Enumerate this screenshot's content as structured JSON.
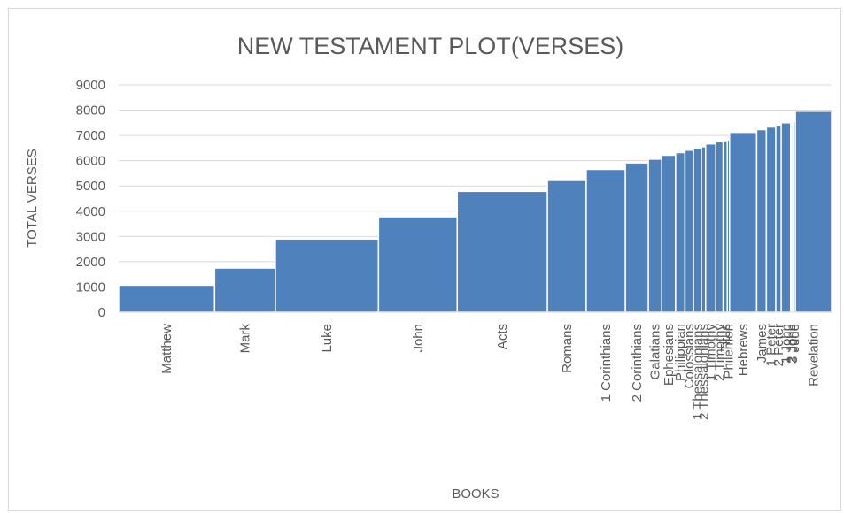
{
  "chart_data": {
    "type": "bar",
    "title": "NEW TESTAMENT PLOT(VERSES)",
    "xlabel": "BOOKS",
    "ylabel": "TOTAL VERSES",
    "ylim": [
      0,
      9000
    ],
    "yticks": [
      0,
      1000,
      2000,
      3000,
      4000,
      5000,
      6000,
      7000,
      8000,
      9000
    ],
    "grid": true,
    "legend": "none",
    "bar_color": "#4f81bd",
    "categories": [
      "Matthew",
      "Mark",
      "Luke",
      "John",
      "Acts",
      "Romans",
      "1 Corinthians",
      "2 Corinthians",
      "Galatians",
      "Ephesians",
      "Philippian",
      "Colossians",
      "1 Thessalonians",
      "2 Thessalonians",
      "1 Timothy",
      "2 Timothy",
      "Titus",
      "Philemon",
      "Hebrews",
      "James",
      "1 Peter",
      "2 Peter",
      "1 John",
      "2 John",
      "3 John",
      "Jude",
      "Revelation"
    ],
    "widths": [
      1071,
      678,
      1151,
      879,
      1007,
      433,
      437,
      257,
      149,
      155,
      104,
      95,
      89,
      47,
      113,
      83,
      46,
      25,
      303,
      108,
      105,
      61,
      105,
      13,
      15,
      25,
      404
    ],
    "values": [
      1071,
      1749,
      2900,
      3779,
      4786,
      5219,
      5656,
      5913,
      6062,
      6217,
      6321,
      6416,
      6505,
      6552,
      6665,
      6748,
      6794,
      6819,
      7122,
      7230,
      7335,
      7396,
      7501,
      7514,
      7529,
      7554,
      7958
    ]
  }
}
